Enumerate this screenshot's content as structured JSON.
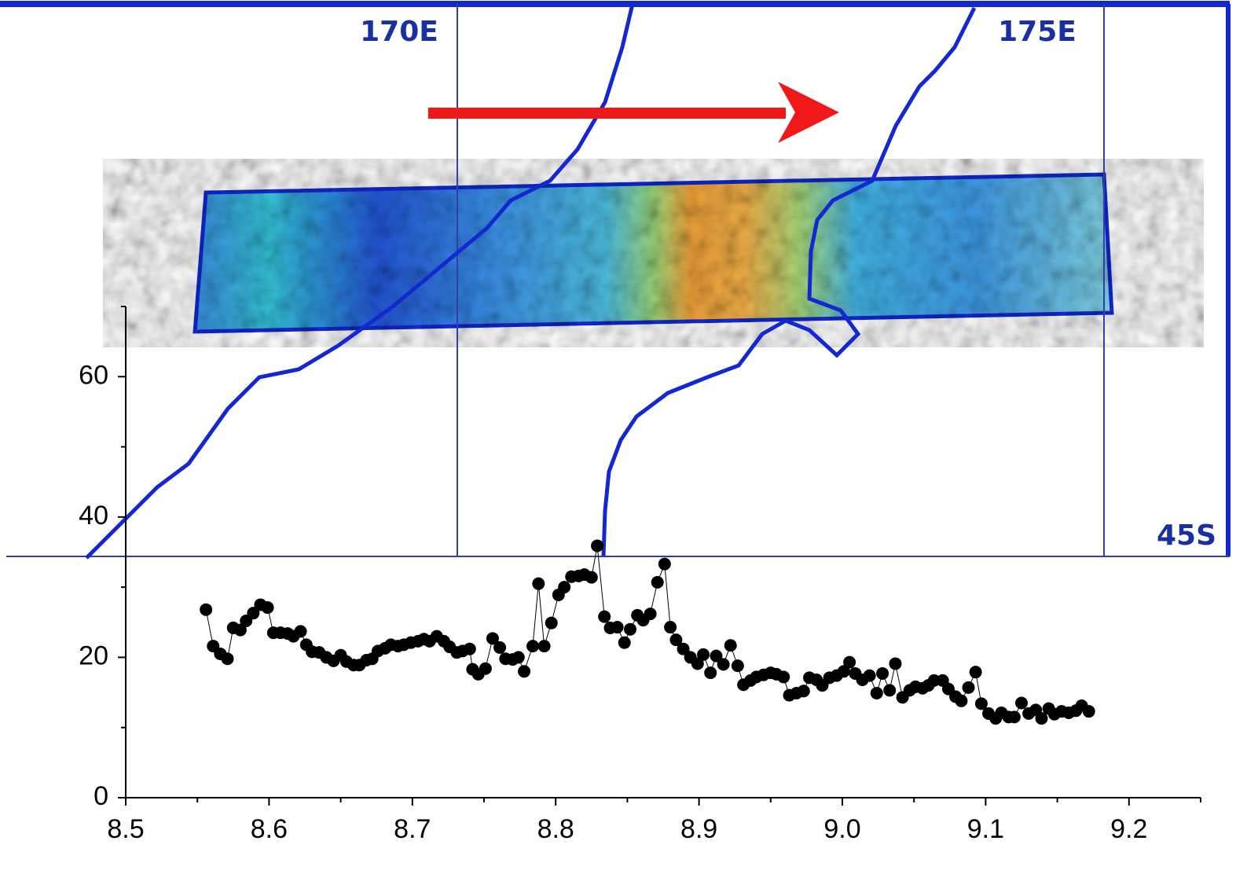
{
  "chart_data": {
    "type": "scatter",
    "map_labels": [
      "170E",
      "175E",
      "45S"
    ],
    "xlim": [
      8.5,
      9.25
    ],
    "xticks": [
      8.5,
      8.6,
      8.7,
      8.8,
      8.9,
      {
        "value": 9,
        "label": "9.0"
      },
      9.1,
      9.2
    ],
    "xticks_minor": [
      8.55,
      8.65,
      8.75,
      8.85,
      8.95,
      9.05,
      9.15,
      9.25
    ],
    "ylim": [
      0,
      70
    ],
    "yticks": [
      0,
      20,
      40,
      60
    ],
    "yticks_minor": [
      10,
      30,
      50,
      70
    ],
    "series": [
      {
        "color": "#000000",
        "x": [
          8.556,
          8.561,
          8.566,
          8.571,
          8.575,
          8.58,
          8.584,
          8.589,
          8.594,
          8.599,
          8.603,
          8.608,
          8.613,
          8.617,
          8.622,
          8.626,
          8.63,
          8.635,
          8.64,
          8.645,
          8.65,
          8.654,
          8.659,
          8.663,
          8.668,
          8.672,
          8.676,
          8.681,
          8.685,
          8.69,
          8.694,
          8.699,
          8.704,
          8.708,
          8.712,
          8.717,
          8.722,
          8.726,
          8.731,
          8.735,
          8.74,
          8.742,
          8.746,
          8.751,
          8.756,
          8.761,
          8.765,
          8.77,
          8.774,
          8.778,
          8.784,
          8.788,
          8.792,
          8.797,
          8.802,
          8.806,
          8.811,
          8.816,
          8.82,
          8.825,
          8.829,
          8.834,
          8.838,
          8.843,
          8.848,
          8.852,
          8.857,
          8.861,
          8.866,
          8.871,
          8.876,
          8.88,
          8.884,
          8.889,
          8.894,
          8.899,
          8.903,
          8.908,
          8.912,
          8.917,
          8.922,
          8.927,
          8.931,
          8.936,
          8.94,
          8.945,
          8.95,
          8.954,
          8.959,
          8.963,
          8.968,
          8.973,
          8.977,
          8.982,
          8.986,
          8.991,
          8.996,
          9.001,
          9.005,
          9.009,
          9.014,
          9.019,
          9.024,
          9.028,
          9.033,
          9.037,
          9.042,
          9.047,
          9.051,
          9.056,
          9.06,
          9.064,
          9.07,
          9.074,
          9.079,
          9.083,
          9.088,
          9.093,
          9.097,
          9.102,
          9.107,
          9.111,
          9.116,
          9.12,
          9.125,
          9.13,
          9.135,
          9.139,
          9.144,
          9.148,
          9.153,
          9.158,
          9.163,
          9.167,
          9.172
        ],
        "values": [
          26.8,
          21.6,
          20.5,
          19.8,
          24.2,
          23.9,
          25.2,
          26.3,
          27.5,
          27.1,
          23.5,
          23.5,
          23.4,
          23.0,
          23.7,
          21.8,
          20.8,
          20.7,
          20.0,
          19.5,
          20.3,
          19.4,
          18.9,
          18.9,
          19.6,
          19.8,
          20.9,
          21.3,
          21.8,
          21.6,
          21.8,
          22.1,
          22.3,
          22.6,
          22.3,
          23.0,
          22.3,
          21.5,
          20.7,
          20.9,
          21.2,
          18.3,
          17.6,
          18.4,
          22.7,
          21.4,
          19.8,
          19.7,
          20.0,
          18.0,
          21.6,
          30.5,
          21.6,
          24.9,
          28.9,
          30.0,
          31.5,
          31.6,
          31.8,
          31.4,
          35.9,
          25.8,
          24.2,
          24.3,
          22.1,
          24.0,
          26.0,
          25.3,
          26.2,
          30.7,
          33.3,
          24.3,
          22.5,
          21.2,
          20.0,
          19.1,
          20.4,
          17.8,
          20.2,
          19.0,
          21.7,
          18.8,
          16.1,
          16.7,
          17.2,
          17.5,
          17.8,
          17.6,
          17.2,
          14.6,
          14.9,
          15.2,
          17.1,
          16.8,
          16.0,
          17.1,
          17.4,
          18.0,
          19.3,
          17.7,
          16.8,
          17.4,
          14.9,
          17.7,
          15.3,
          19.1,
          14.3,
          15.3,
          15.8,
          15.6,
          16.0,
          16.7,
          16.7,
          15.5,
          14.4,
          13.8,
          15.7,
          17.9,
          13.4,
          12.0,
          11.3,
          12.1,
          11.5,
          11.5,
          13.5,
          12.0,
          12.5,
          11.3,
          12.7,
          11.9,
          12.3,
          12.1,
          12.4,
          13.1,
          12.3
        ]
      }
    ]
  }
}
